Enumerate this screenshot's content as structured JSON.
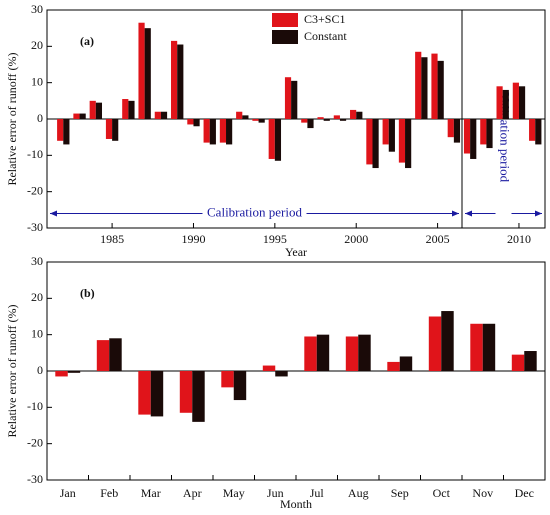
{
  "chart_data": [
    {
      "type": "bar",
      "panel_label": "(a)",
      "xlabel": "Year",
      "ylabel": "Relative error of runoff (%)",
      "x": [
        1982,
        1983,
        1984,
        1985,
        1986,
        1987,
        1988,
        1989,
        1990,
        1991,
        1992,
        1993,
        1994,
        1995,
        1996,
        1997,
        1998,
        1999,
        2000,
        2001,
        2002,
        2003,
        2004,
        2005,
        2006,
        2007,
        2008,
        2009,
        2010,
        2011
      ],
      "series": [
        {
          "name": "C3+SC1",
          "color": "#e0141a",
          "values": [
            -6,
            1.5,
            5,
            -5.5,
            5.5,
            26.5,
            2,
            21.5,
            -1.5,
            -6.5,
            -6.5,
            2,
            -0.5,
            -11,
            11.5,
            -1,
            0.5,
            1,
            2.5,
            -12.5,
            -7,
            -12,
            18.5,
            18,
            -5,
            -9.5,
            -7,
            9,
            10,
            -6
          ]
        },
        {
          "name": "Constant",
          "color": "#1a0a08",
          "values": [
            -7,
            1.5,
            4.5,
            -6,
            5,
            25,
            2,
            20.5,
            -2,
            -7,
            -7,
            1,
            -1,
            -11.5,
            10.5,
            -2.5,
            -0.5,
            -0.5,
            2,
            -13.5,
            -9,
            -13.5,
            17,
            16,
            -6.5,
            -11,
            -8,
            8,
            9,
            -7
          ]
        }
      ],
      "xlim": [
        1981,
        2011.6
      ],
      "xticks": [
        1985,
        1990,
        1995,
        2000,
        2005,
        2010
      ],
      "ylim": [
        -30,
        30
      ],
      "yticks": [
        -30,
        -20,
        -10,
        0,
        10,
        20,
        30
      ],
      "legend": "upper center",
      "split_year": 2006.5,
      "annotations": [
        "Calibration period",
        "Validation period"
      ]
    },
    {
      "type": "bar",
      "panel_label": "(b)",
      "xlabel": "Month",
      "ylabel": "Relative error of runoff (%)",
      "categories": [
        "Jan",
        "Feb",
        "Mar",
        "Apr",
        "May",
        "Jun",
        "Jul",
        "Aug",
        "Sep",
        "Oct",
        "Nov",
        "Dec"
      ],
      "series": [
        {
          "name": "C3+SC1",
          "color": "#e0141a",
          "values": [
            -1.5,
            8.5,
            -12,
            -11.5,
            -4.5,
            1.5,
            9.5,
            9.5,
            2.5,
            15,
            13,
            4.5
          ]
        },
        {
          "name": "Constant",
          "color": "#1a0a08",
          "values": [
            -0.5,
            9,
            -12.5,
            -14,
            -8,
            -1.5,
            10,
            10,
            4,
            16.5,
            13,
            5.5
          ]
        }
      ],
      "ylim": [
        -30,
        30
      ],
      "yticks": [
        -30,
        -20,
        -10,
        0,
        10,
        20,
        30
      ]
    }
  ]
}
